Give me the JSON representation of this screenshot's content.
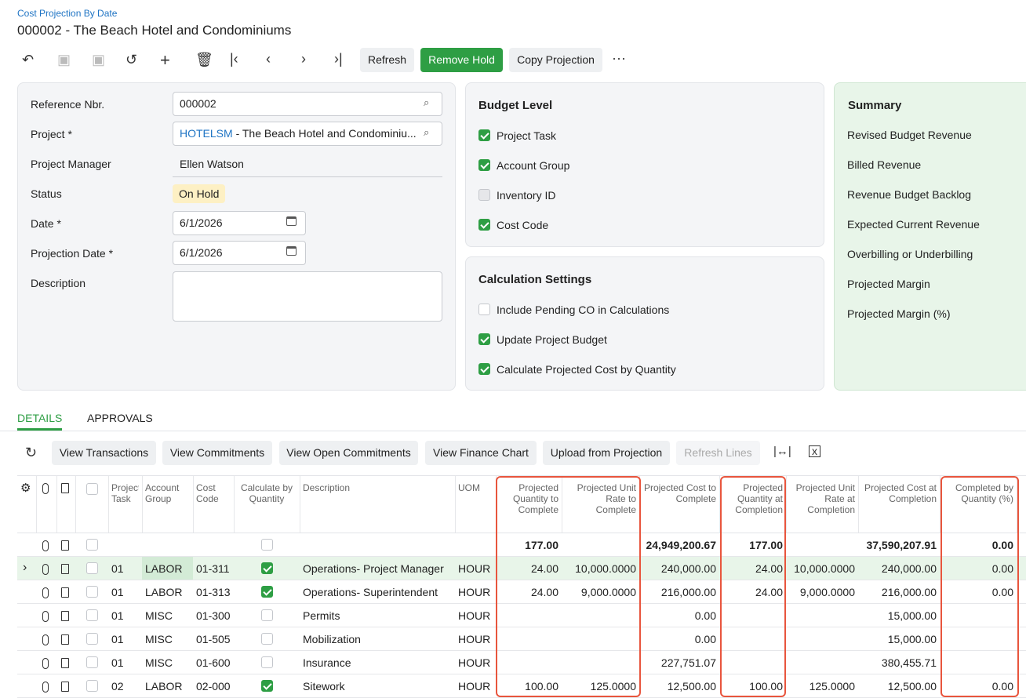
{
  "header": {
    "breadcrumb": "Cost Projection By Date",
    "title": "000002 - The Beach Hotel and Condominiums"
  },
  "toolbar": {
    "buttons": [
      "Refresh",
      "Remove Hold",
      "Copy Projection"
    ]
  },
  "form": {
    "fields": [
      {
        "label": "Reference Nbr.",
        "value": "000002"
      },
      {
        "label": "Project *",
        "link": "HOTELSM",
        "value": " - The Beach Hotel and Condominiu..."
      },
      {
        "label": "Project Manager",
        "value": "Ellen Watson"
      },
      {
        "label": "Status",
        "value": "On Hold"
      },
      {
        "label": "Date *",
        "value": "6/1/2026"
      },
      {
        "label": "Projection Date *",
        "value": "6/1/2026"
      },
      {
        "label": "Description"
      }
    ]
  },
  "budget_level": {
    "title": "Budget Level",
    "options": [
      {
        "label": "Project Task",
        "checked": true
      },
      {
        "label": "Account Group",
        "checked": true
      },
      {
        "label": "Inventory ID",
        "checked": false,
        "disabled": true
      },
      {
        "label": "Cost Code",
        "checked": true
      }
    ]
  },
  "calculation_settings": {
    "title": "Calculation Settings",
    "options": [
      {
        "label": "Include Pending CO in Calculations",
        "checked": false
      },
      {
        "label": "Update Project Budget",
        "checked": true
      },
      {
        "label": "Calculate Projected Cost by Quantity",
        "checked": true
      }
    ]
  },
  "summary": {
    "title": "Summary",
    "items": [
      "Revised Budget Revenue",
      "Billed Revenue",
      "Revenue Budget Backlog",
      "Expected Current Revenue",
      "Overbilling or Underbilling",
      "Projected Margin",
      "Projected Margin (%)"
    ]
  },
  "tabs": [
    "DETAILS",
    "APPROVALS"
  ],
  "grid_toolbar": {
    "buttons": [
      "View Transactions",
      "View Commitments",
      "View Open Commitments",
      "View Finance Chart",
      "Upload from Projection",
      "Refresh Lines"
    ]
  },
  "table": {
    "columns": [
      "Project Task",
      "Account Group",
      "Cost Code",
      "Calculate by Quantity",
      "Description",
      "UOM",
      "Projected Quantity to Complete",
      "Projected Unit Rate to Complete",
      "Projected Cost to Complete",
      "Projected Quantity at Completion",
      "Projected Unit Rate at Completion",
      "Projected Cost at Completion",
      "Completed by Quantity (%)"
    ],
    "totals": [
      "177.00",
      null,
      "24,949,200.67",
      "177.00",
      null,
      "37,590,207.91",
      "0.00"
    ],
    "rows": [
      {
        "task": "01",
        "account_group": "LABOR",
        "cost_code": "01-311",
        "calc": true,
        "description": "Operations- Project Manager",
        "uom": "HOUR",
        "values": [
          "24.00",
          "10,000.0000",
          "240,000.00",
          "24.00",
          "10,000.0000",
          "240,000.00",
          "0.00"
        ]
      },
      {
        "task": "01",
        "account_group": "LABOR",
        "cost_code": "01-313",
        "calc": true,
        "description": "Operations- Superintendent",
        "uom": "HOUR",
        "values": [
          "24.00",
          "9,000.0000",
          "216,000.00",
          "24.00",
          "9,000.0000",
          "216,000.00",
          "0.00"
        ]
      },
      {
        "task": "01",
        "account_group": "MISC",
        "cost_code": "01-300",
        "calc": false,
        "description": "Permits",
        "uom": "HOUR",
        "values": [
          null,
          null,
          "0.00",
          null,
          null,
          "15,000.00",
          null
        ]
      },
      {
        "task": "01",
        "account_group": "MISC",
        "cost_code": "01-505",
        "calc": false,
        "description": "Mobilization",
        "uom": "HOUR",
        "values": [
          null,
          null,
          "0.00",
          null,
          null,
          "15,000.00",
          null
        ]
      },
      {
        "task": "01",
        "account_group": "MISC",
        "cost_code": "01-600",
        "calc": false,
        "description": "Insurance",
        "uom": "HOUR",
        "values": [
          null,
          null,
          "227,751.07",
          null,
          null,
          "380,455.71",
          null
        ]
      },
      {
        "task": "02",
        "account_group": "LABOR",
        "cost_code": "02-000",
        "calc": true,
        "description": "Sitework",
        "uom": "HOUR",
        "values": [
          "100.00",
          "125.0000",
          "12,500.00",
          "100.00",
          "125.0000",
          "12,500.00",
          "0.00"
        ]
      }
    ]
  }
}
